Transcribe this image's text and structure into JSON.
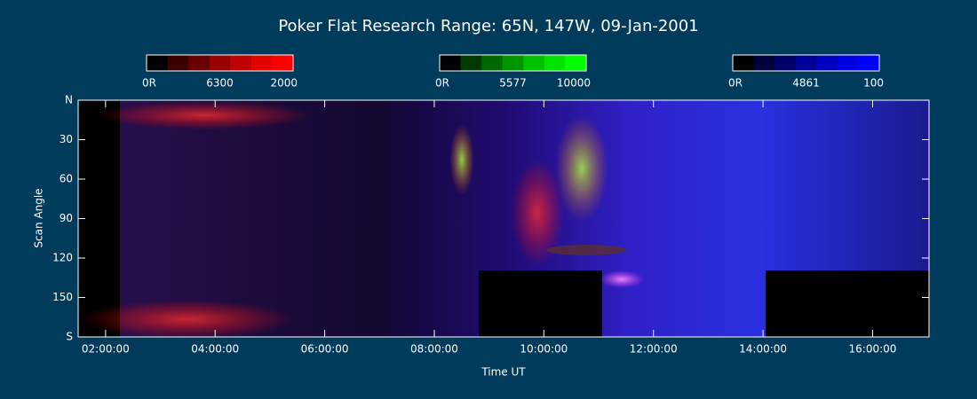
{
  "chart_data": {
    "type": "heatmap",
    "title": "Poker Flat Research Range: 65N, 147W, 09-Jan-2001",
    "xlabel": "Time UT",
    "ylabel": "Scan Angle",
    "xlim": [
      1.5,
      17.03
    ],
    "xticks": [
      {
        "value": 2,
        "label": "02:00:00"
      },
      {
        "value": 4,
        "label": "04:00:00"
      },
      {
        "value": 6,
        "label": "06:00:00"
      },
      {
        "value": 8,
        "label": "08:00:00"
      },
      {
        "value": 10,
        "label": "10:00:00"
      },
      {
        "value": 12,
        "label": "12:00:00"
      },
      {
        "value": 14,
        "label": "14:00:00"
      },
      {
        "value": 16,
        "label": "16:00:00"
      }
    ],
    "ylim": [
      0,
      180
    ],
    "yticks": [
      {
        "value": 0,
        "label": "N"
      },
      30,
      60,
      90,
      120,
      150,
      {
        "value": 180,
        "label": "S"
      }
    ],
    "colorbars": [
      {
        "min_label": "0R",
        "name": "6300",
        "max_label": "2000",
        "colors": [
          "#000000",
          "#3a0000",
          "#680000",
          "#960000",
          "#c00000",
          "#e40000",
          "#ff0000"
        ]
      },
      {
        "min_label": "0R",
        "name": "5577",
        "max_label": "10000",
        "colors": [
          "#000000",
          "#003a00",
          "#006800",
          "#009600",
          "#00c000",
          "#00e400",
          "#00ff00"
        ]
      },
      {
        "min_label": "0R",
        "name": "4861",
        "max_label": "100",
        "colors": [
          "#000000",
          "#00003a",
          "#000068",
          "#000096",
          "#0000c0",
          "#0000e4",
          "#0000ff"
        ]
      }
    ]
  }
}
